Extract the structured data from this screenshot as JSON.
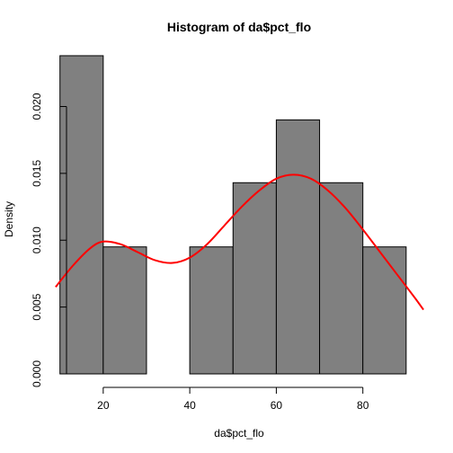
{
  "chart_data": {
    "type": "bar",
    "title": "Histogram of da$pct_flo",
    "xlabel": "da$pct_flo",
    "ylabel": "Density",
    "bins": [
      {
        "from": 10,
        "to": 20,
        "density": 0.0238
      },
      {
        "from": 20,
        "to": 30,
        "density": 0.0095
      },
      {
        "from": 30,
        "to": 40,
        "density": 0.0
      },
      {
        "from": 40,
        "to": 50,
        "density": 0.0095
      },
      {
        "from": 50,
        "to": 60,
        "density": 0.0143
      },
      {
        "from": 60,
        "to": 70,
        "density": 0.019
      },
      {
        "from": 70,
        "to": 80,
        "density": 0.0143
      },
      {
        "from": 80,
        "to": 90,
        "density": 0.0095
      }
    ],
    "density_curve": {
      "color": "#ff0000",
      "x": [
        9,
        13,
        17,
        20,
        24,
        28,
        32,
        36,
        40,
        44,
        48,
        52,
        56,
        60,
        64,
        68,
        72,
        76,
        80,
        84,
        88,
        92,
        94
      ],
      "y": [
        0.0065,
        0.0081,
        0.0094,
        0.0099,
        0.0097,
        0.0091,
        0.0085,
        0.0083,
        0.0087,
        0.0097,
        0.0111,
        0.0125,
        0.0137,
        0.0146,
        0.0149,
        0.0146,
        0.0137,
        0.0124,
        0.0108,
        0.0091,
        0.0074,
        0.0057,
        0.0048
      ]
    },
    "xticks": [
      20,
      40,
      60,
      80
    ],
    "yticks": [
      "0.000",
      "0.005",
      "0.010",
      "0.015",
      "0.020"
    ],
    "xlim": [
      8.4,
      94.6
    ],
    "ylim": [
      0,
      0.024
    ],
    "bar_color": "#808080",
    "grid": false
  }
}
